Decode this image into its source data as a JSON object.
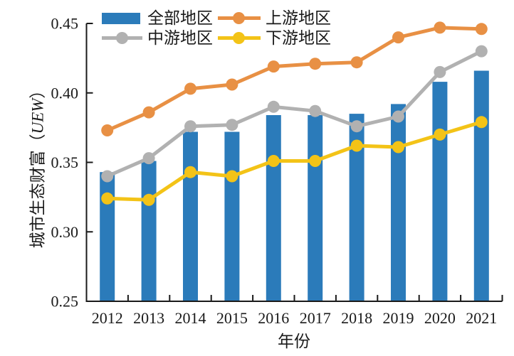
{
  "chart_data": {
    "type": "combo-bar-line",
    "title": "",
    "xlabel": "年份",
    "ylabel_prefix": "城市生态财富（",
    "ylabel_italic": "UEW",
    "ylabel_suffix": "）",
    "ylim": [
      0.25,
      0.45
    ],
    "yticks": [
      "0.25",
      "0.30",
      "0.35",
      "0.40",
      "0.45"
    ],
    "categories": [
      "2012",
      "2013",
      "2014",
      "2015",
      "2016",
      "2017",
      "2018",
      "2019",
      "2020",
      "2021"
    ],
    "series": [
      {
        "key": "all",
        "name": "全部地区",
        "style": "bar",
        "color": "#2B7BBA",
        "values": [
          0.343,
          0.351,
          0.372,
          0.372,
          0.384,
          0.384,
          0.385,
          0.392,
          0.408,
          0.416
        ]
      },
      {
        "key": "upstream",
        "name": "上游地区",
        "style": "line",
        "color": "#E89044",
        "values": [
          0.373,
          0.386,
          0.403,
          0.406,
          0.419,
          0.421,
          0.422,
          0.44,
          0.447,
          0.446
        ]
      },
      {
        "key": "midstream",
        "name": "中游地区",
        "style": "line",
        "color": "#B1B1B1",
        "values": [
          0.34,
          0.353,
          0.376,
          0.377,
          0.39,
          0.387,
          0.376,
          0.383,
          0.415,
          0.43
        ]
      },
      {
        "key": "downstream",
        "name": "下游地区",
        "style": "line",
        "color": "#F3C317",
        "values": [
          0.324,
          0.323,
          0.343,
          0.34,
          0.351,
          0.351,
          0.362,
          0.361,
          0.37,
          0.379
        ]
      }
    ],
    "grid": false,
    "legend_position": "top-left-inside",
    "axis_color": "#1A1A1A"
  }
}
